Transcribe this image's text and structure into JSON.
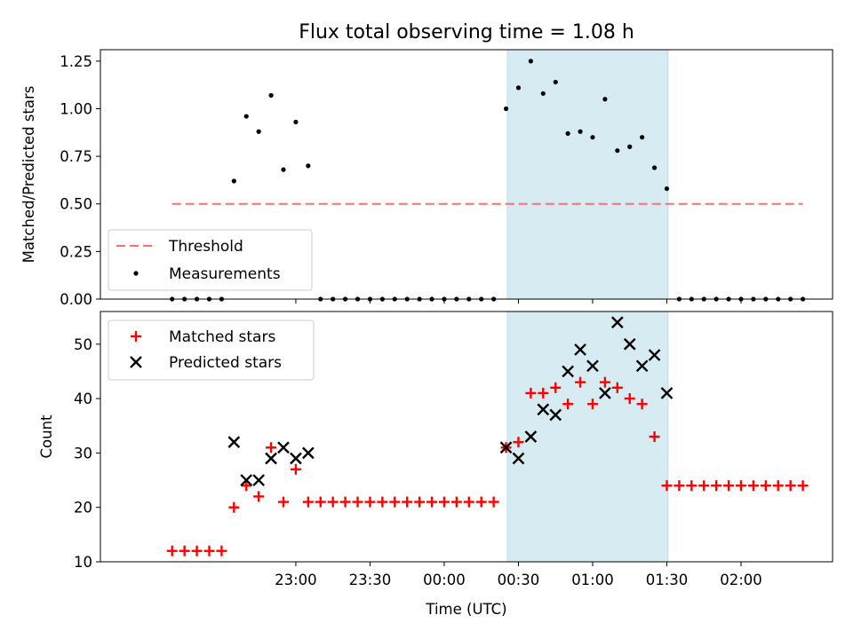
{
  "chart_data": [
    {
      "type": "scatter",
      "title": "Flux total observing time = 1.08 h",
      "xlabel": "",
      "ylabel": "Matched/Predicted stars",
      "ylim": [
        0,
        1.31
      ],
      "yticks": [
        0.0,
        0.25,
        0.5,
        0.75,
        1.0,
        1.25
      ],
      "ytick_labels": [
        "0.00",
        "0.25",
        "0.50",
        "0.75",
        "1.00",
        "1.25"
      ],
      "x_unit": "minutes after 22:00 UTC",
      "xlim": [
        -19,
        277
      ],
      "xticks": [
        60,
        90,
        120,
        150,
        180,
        210,
        240
      ],
      "xtick_labels": [
        "",
        "",
        "",
        "",
        "",
        "",
        ""
      ],
      "shaded_span": {
        "x0": 145.5,
        "x1": 210.5,
        "color": "#add8e6"
      },
      "threshold": {
        "name": "Threshold",
        "y": 0.5,
        "x_from": 10,
        "x_to": 265,
        "color": "#ff6f6f"
      },
      "legend": {
        "entries": [
          "Threshold",
          "Measurements"
        ],
        "placement": "lower-left"
      },
      "series": [
        {
          "name": "Measurements",
          "marker": "dot",
          "color": "#000000",
          "x": [
            10,
            15,
            20,
            25,
            30,
            35,
            40,
            45,
            50,
            55,
            60,
            65,
            70,
            75,
            80,
            85,
            90,
            95,
            100,
            105,
            110,
            115,
            120,
            125,
            130,
            135,
            140,
            145,
            150,
            155,
            160,
            165,
            170,
            175,
            180,
            185,
            190,
            195,
            200,
            205,
            210,
            215,
            220,
            225,
            230,
            235,
            240,
            245,
            250,
            255,
            260,
            265
          ],
          "y": [
            0,
            0,
            0,
            0,
            0,
            0.62,
            0.96,
            0.88,
            1.07,
            0.68,
            0.93,
            0.7,
            0,
            0,
            0,
            0,
            0,
            0,
            0,
            0,
            0,
            0,
            0,
            0,
            0,
            0,
            0,
            1.0,
            1.11,
            1.25,
            1.08,
            1.14,
            0.87,
            0.88,
            0.85,
            1.05,
            0.78,
            0.8,
            0.85,
            0.69,
            0.58,
            0,
            0,
            0,
            0,
            0,
            0,
            0,
            0,
            0,
            0,
            0
          ]
        }
      ]
    },
    {
      "type": "scatter",
      "title": "",
      "xlabel": "Time (UTC)",
      "ylabel": "Count",
      "ylim": [
        10,
        56
      ],
      "yticks": [
        10,
        20,
        30,
        40,
        50
      ],
      "ytick_labels": [
        "10",
        "20",
        "30",
        "40",
        "50"
      ],
      "x_unit": "minutes after 22:00 UTC",
      "xlim": [
        -19,
        277
      ],
      "xticks": [
        60,
        90,
        120,
        150,
        180,
        210,
        240
      ],
      "xtick_labels": [
        "23:00",
        "23:30",
        "00:00",
        "00:30",
        "01:00",
        "01:30",
        "02:00"
      ],
      "shaded_span": {
        "x0": 145.5,
        "x1": 210.5,
        "color": "#add8e6"
      },
      "legend": {
        "entries": [
          "Matched stars",
          "Predicted stars"
        ],
        "placement": "upper-left"
      },
      "series": [
        {
          "name": "Matched stars",
          "marker": "plus",
          "color": "#ff0000",
          "x": [
            10,
            15,
            20,
            25,
            30,
            35,
            40,
            45,
            50,
            55,
            60,
            65,
            70,
            75,
            80,
            85,
            90,
            95,
            100,
            105,
            110,
            115,
            120,
            125,
            130,
            135,
            140,
            145,
            150,
            155,
            160,
            165,
            170,
            175,
            180,
            185,
            190,
            195,
            200,
            205,
            210,
            215,
            220,
            225,
            230,
            235,
            240,
            245,
            250,
            255,
            260,
            265
          ],
          "y": [
            12,
            12,
            12,
            12,
            12,
            20,
            24,
            22,
            31,
            21,
            27,
            21,
            21,
            21,
            21,
            21,
            21,
            21,
            21,
            21,
            21,
            21,
            21,
            21,
            21,
            21,
            21,
            31,
            32,
            41,
            41,
            42,
            39,
            43,
            39,
            43,
            42,
            40,
            39,
            33,
            24,
            24,
            24,
            24,
            24,
            24,
            24,
            24,
            24,
            24,
            24,
            24
          ]
        },
        {
          "name": "Predicted stars",
          "marker": "x",
          "color": "#000000",
          "x": [
            35,
            40,
            45,
            50,
            55,
            60,
            65,
            145,
            150,
            155,
            160,
            165,
            170,
            175,
            180,
            185,
            190,
            195,
            200,
            205,
            210
          ],
          "y": [
            32,
            25,
            25,
            29,
            31,
            29,
            30,
            31,
            29,
            33,
            38,
            37,
            45,
            49,
            46,
            41,
            54,
            50,
            46,
            48,
            41
          ]
        }
      ]
    }
  ]
}
